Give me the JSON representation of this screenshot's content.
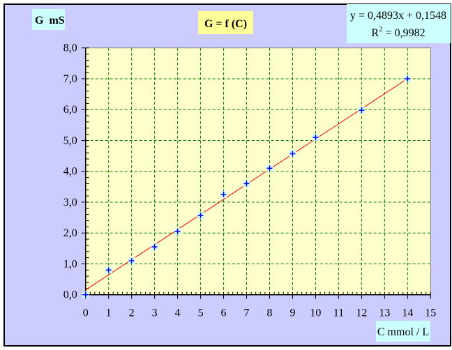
{
  "chart_data": {
    "type": "scatter",
    "title": "G = f (C)",
    "ylabel": "G  mS",
    "xlabel": "C mmol / L",
    "xlim": [
      0,
      15
    ],
    "ylim": [
      0,
      8
    ],
    "x_ticks": [
      "0",
      "1",
      "2",
      "3",
      "4",
      "5",
      "6",
      "7",
      "8",
      "9",
      "10",
      "11",
      "12",
      "13",
      "14",
      "15"
    ],
    "y_ticks": [
      "0,0",
      "1,0",
      "2,0",
      "3,0",
      "4,0",
      "5,0",
      "6,0",
      "7,0",
      "8,0"
    ],
    "grid": true,
    "series": [
      {
        "marker": "plus",
        "color": "#0000ff",
        "points": [
          [
            0,
            0
          ],
          [
            1,
            0.8
          ],
          [
            2,
            1.1
          ],
          [
            3,
            1.55
          ],
          [
            4,
            2.05
          ],
          [
            5,
            2.57
          ],
          [
            6,
            3.25
          ],
          [
            7,
            3.6
          ],
          [
            8,
            4.1
          ],
          [
            9,
            4.57
          ],
          [
            10,
            5.1
          ],
          [
            12,
            5.98
          ],
          [
            14,
            7.0
          ]
        ]
      }
    ],
    "trendline": {
      "type": "linear",
      "slope": 0.4893,
      "intercept": 0.1548,
      "color": "#ff0000",
      "equation": "y = 0,4893x + 0,1548",
      "r2_label": "R",
      "r2_sup": "2",
      "r2_value": " = 0,9982"
    },
    "colors": {
      "background": "#ccccff",
      "plot_area": "#ffffcc",
      "grid": "#008000",
      "title_box": "#ffff99",
      "label_box": "#ccffff"
    }
  }
}
